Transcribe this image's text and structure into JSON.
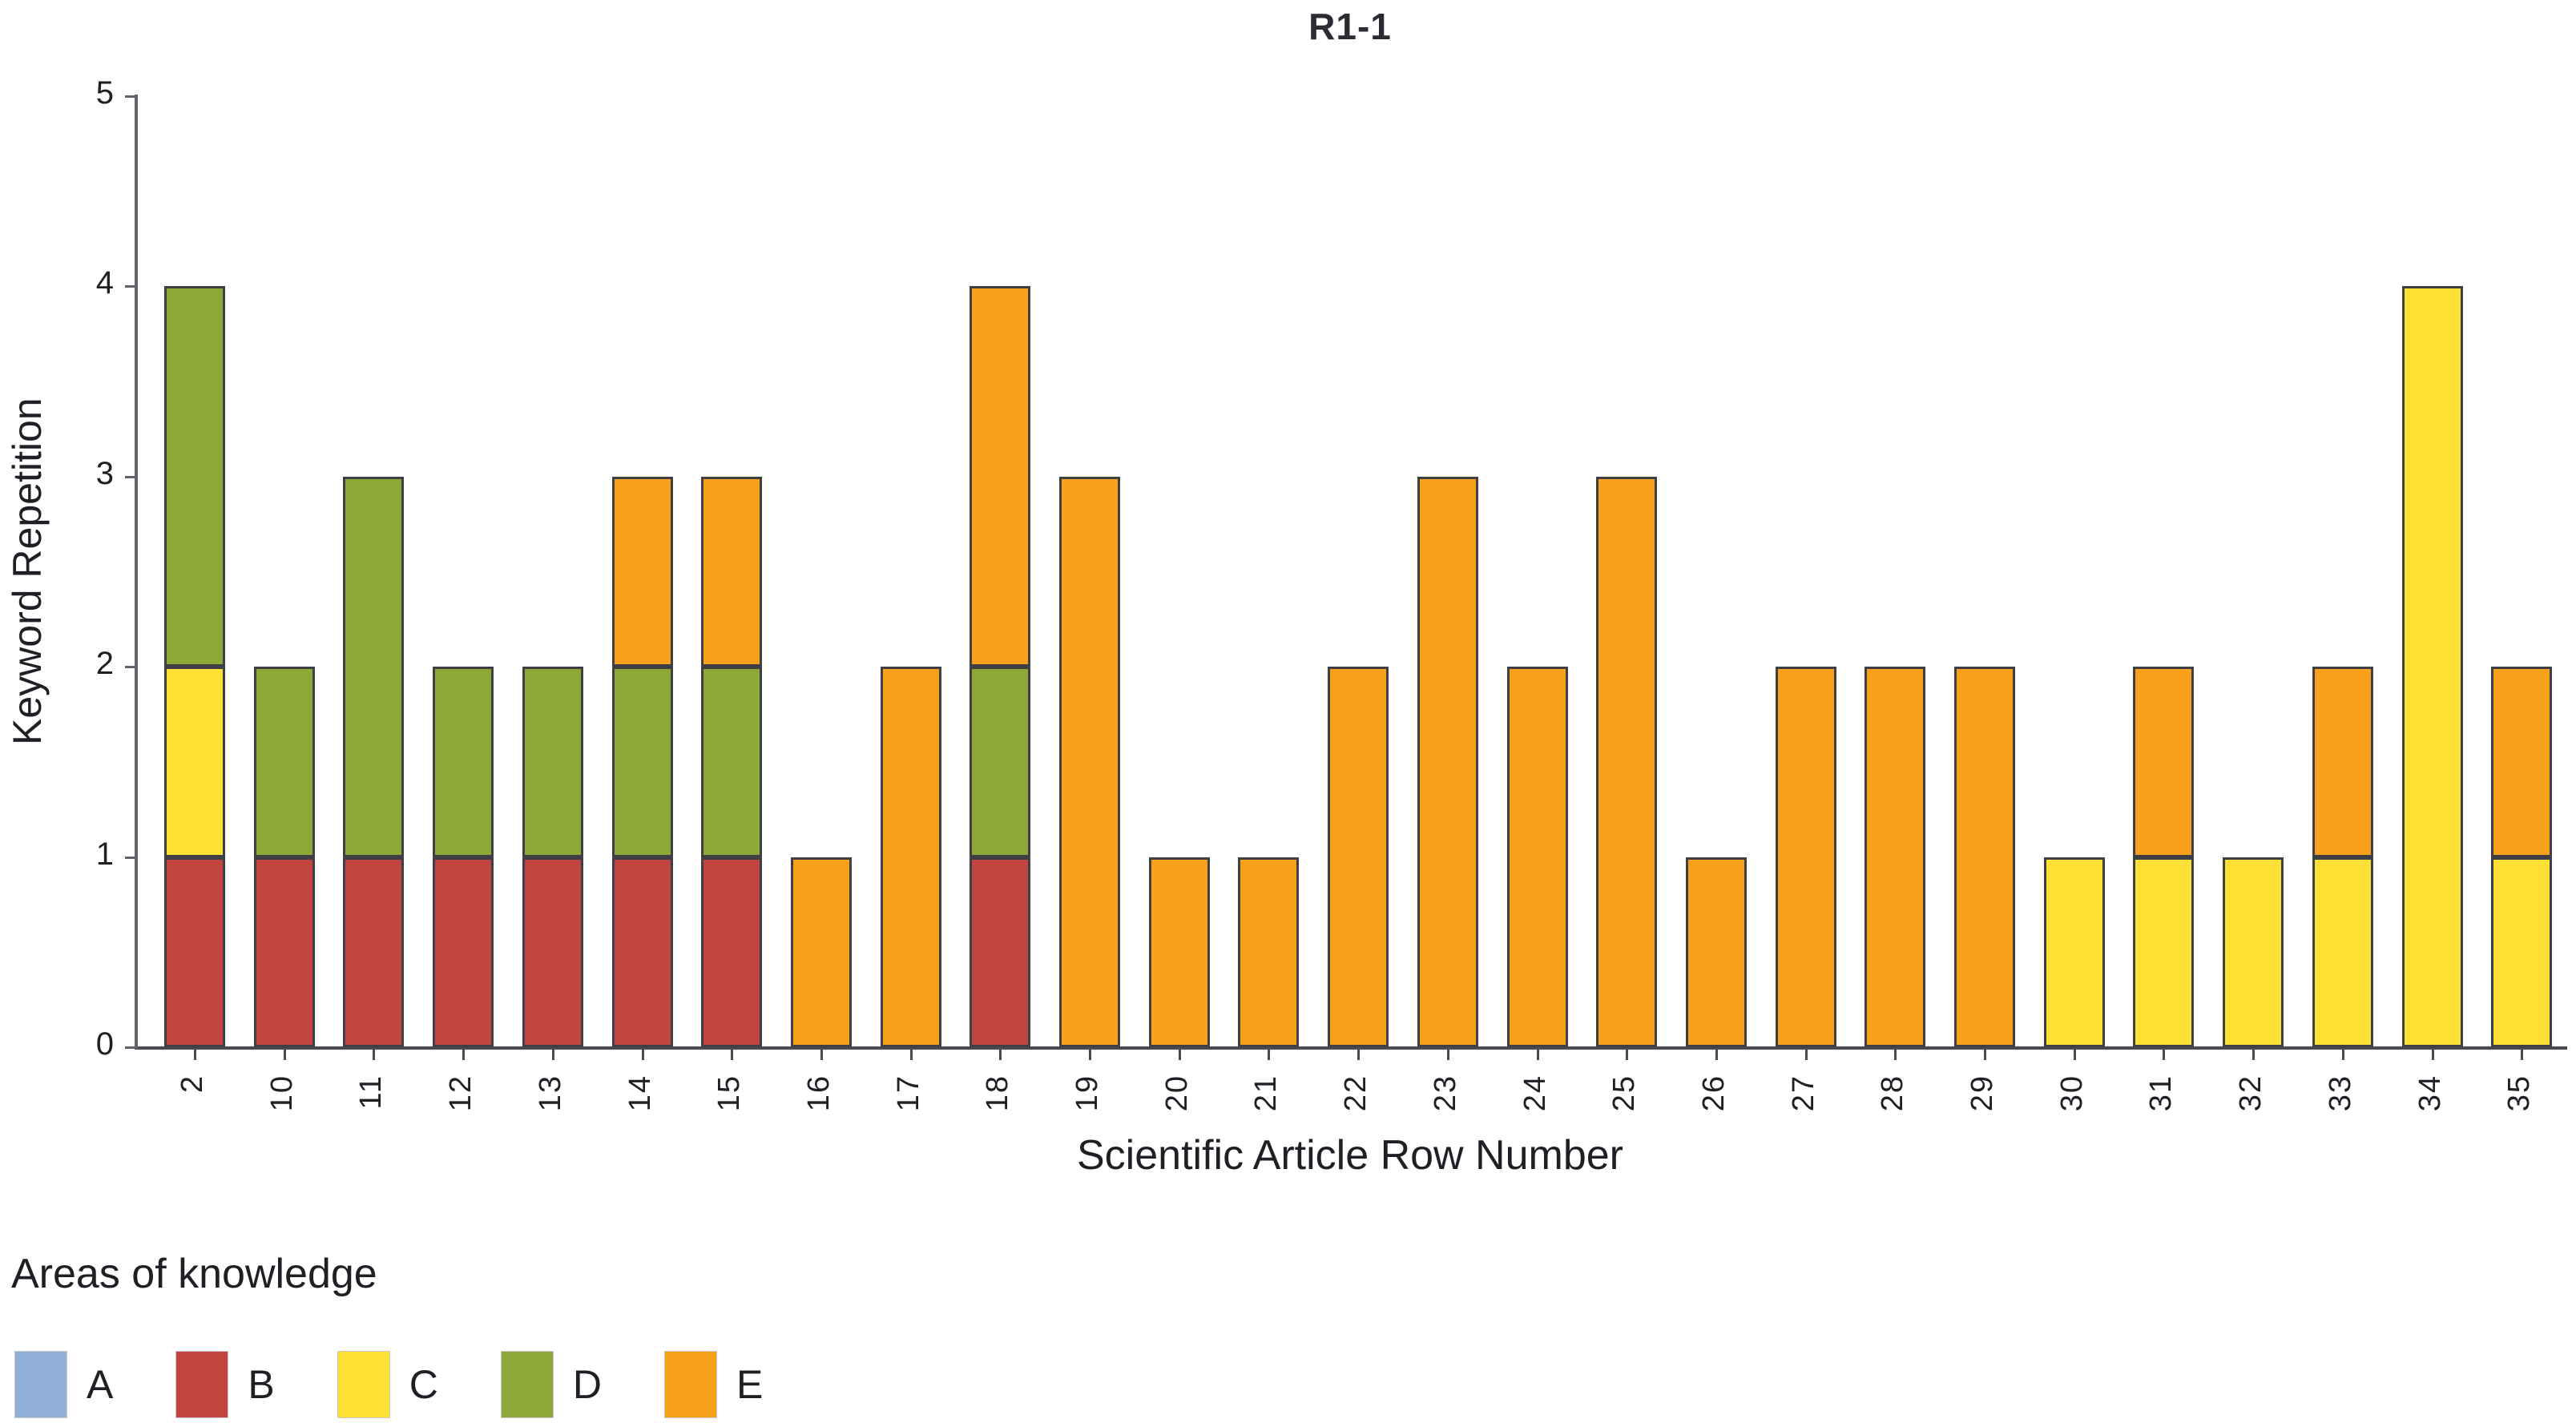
{
  "chart_data": {
    "type": "bar",
    "stacked": true,
    "title": "R1-1",
    "xlabel": "Scientific Article Row Number",
    "ylabel": "Keyword Repetition",
    "ylim": [
      0,
      5
    ],
    "yticks": [
      0,
      1,
      2,
      3,
      4,
      5
    ],
    "grid": false,
    "categories": [
      "2",
      "10",
      "11",
      "12",
      "13",
      "14",
      "15",
      "16",
      "17",
      "18",
      "19",
      "20",
      "21",
      "22",
      "23",
      "24",
      "25",
      "26",
      "27",
      "28",
      "29",
      "30",
      "31",
      "32",
      "33",
      "34",
      "35"
    ],
    "series": [
      {
        "name": "A",
        "color": "#91AFD7",
        "values": [
          0,
          0,
          0,
          0,
          0,
          0,
          0,
          0,
          0,
          0,
          0,
          0,
          0,
          0,
          0,
          0,
          0,
          0,
          0,
          0,
          0,
          0,
          0,
          0,
          0,
          0,
          0
        ]
      },
      {
        "name": "B",
        "color": "#C0443F",
        "values": [
          1,
          1,
          1,
          1,
          1,
          1,
          1,
          0,
          0,
          1,
          0,
          0,
          0,
          0,
          0,
          0,
          0,
          0,
          0,
          0,
          0,
          0,
          0,
          0,
          0,
          0,
          0
        ]
      },
      {
        "name": "C",
        "color": "#FFE136",
        "values": [
          1,
          0,
          0,
          0,
          0,
          0,
          0,
          0,
          0,
          0,
          0,
          0,
          0,
          0,
          0,
          0,
          0,
          0,
          0,
          0,
          0,
          1,
          1,
          1,
          1,
          4,
          1
        ]
      },
      {
        "name": "D",
        "color": "#8CA837",
        "values": [
          2,
          1,
          2,
          1,
          1,
          1,
          1,
          0,
          0,
          1,
          0,
          0,
          0,
          0,
          0,
          0,
          0,
          0,
          0,
          0,
          0,
          0,
          0,
          0,
          0,
          0,
          0
        ]
      },
      {
        "name": "E",
        "color": "#F9A01B",
        "values": [
          0,
          0,
          0,
          0,
          0,
          1,
          1,
          1,
          2,
          2,
          3,
          1,
          1,
          2,
          3,
          2,
          3,
          1,
          2,
          2,
          2,
          0,
          1,
          0,
          1,
          0,
          1
        ]
      }
    ],
    "legend": {
      "title": "Areas of knowledge",
      "position": "bottom-left",
      "entries": [
        "A",
        "B",
        "C",
        "D",
        "E"
      ]
    }
  }
}
